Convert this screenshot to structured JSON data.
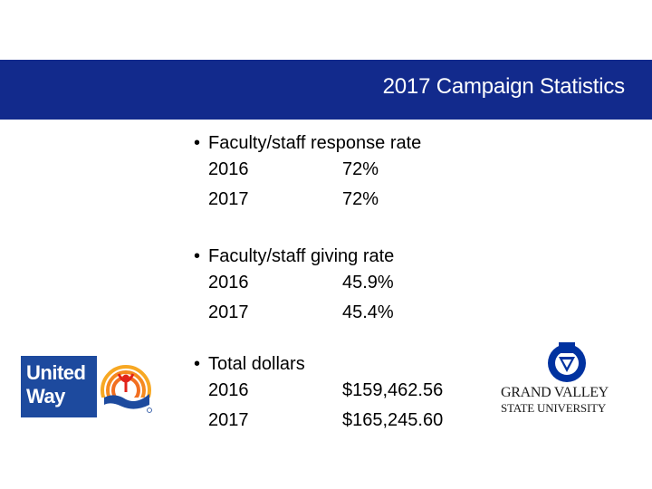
{
  "slide": {
    "title": "2017 Campaign Statistics"
  },
  "colors": {
    "title_bar": "#122a8c",
    "united_way_blue": "#1d4a9e",
    "united_way_orange": "#f26f21",
    "united_way_yellow": "#f7a823",
    "united_way_red": "#e2231a",
    "gvsu_blue": "#0032a0"
  },
  "stats": [
    {
      "heading": "Faculty/staff response rate",
      "rows": [
        {
          "year": "2016",
          "value": "72%"
        },
        {
          "year": "2017",
          "value": "72%"
        }
      ]
    },
    {
      "heading": "Faculty/staff giving rate",
      "rows": [
        {
          "year": "2016",
          "value": "45.9%"
        },
        {
          "year": "2017",
          "value": "45.4%"
        }
      ]
    },
    {
      "heading": "Total dollars",
      "rows": [
        {
          "year": "2016",
          "value": "$159,462.56"
        },
        {
          "year": "2017",
          "value": "$165,245.60"
        }
      ]
    }
  ],
  "logos": {
    "united_way": {
      "line1": "United",
      "line2": "Way"
    },
    "gvsu": {
      "line1": "GRAND VALLEY",
      "line2": "STATE UNIVERSITY"
    }
  }
}
